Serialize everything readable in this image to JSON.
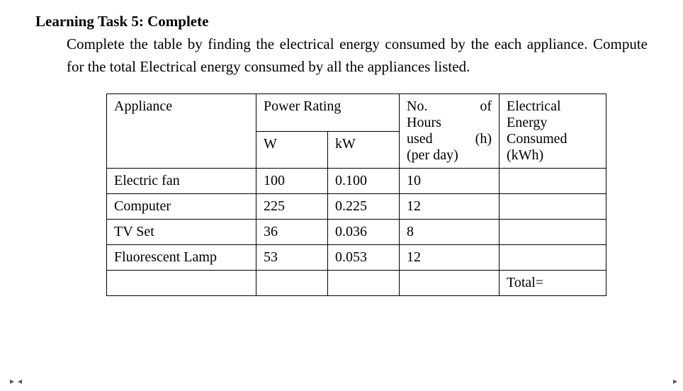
{
  "heading": "Learning Task 5: Complete",
  "description": "Complete the table by finding the electrical energy consumed by the each appliance. Compute for the total Electrical energy consumed by all the appliances listed.",
  "table": {
    "headers": {
      "appliance": "Appliance",
      "power_rating": "Power Rating",
      "w": "W",
      "kw": "kW",
      "hours_l1": "No.",
      "hours_of": "of",
      "hours_l2": "Hours",
      "hours_l3a": "used",
      "hours_l3b": "(h)",
      "hours_l4": "(per day)",
      "energy_l1": "Electrical",
      "energy_l2": "Energy",
      "energy_l3": "Consumed",
      "energy_l4": "(kWh)"
    },
    "rows": [
      {
        "appliance": "Electric fan",
        "w": "100",
        "kw": "0.100",
        "h": "10",
        "e": ""
      },
      {
        "appliance": "Computer",
        "w": "225",
        "kw": "0.225",
        "h": "12",
        "e": ""
      },
      {
        "appliance": "TV Set",
        "w": "36",
        "kw": "0.036",
        "h": "8",
        "e": ""
      },
      {
        "appliance": "Fluorescent Lamp",
        "w": "53",
        "kw": "0.053",
        "h": "12",
        "e": ""
      }
    ],
    "total_label": "Total="
  },
  "nav": {
    "left1": "▸",
    "left2": "◂",
    "right": "▸"
  }
}
